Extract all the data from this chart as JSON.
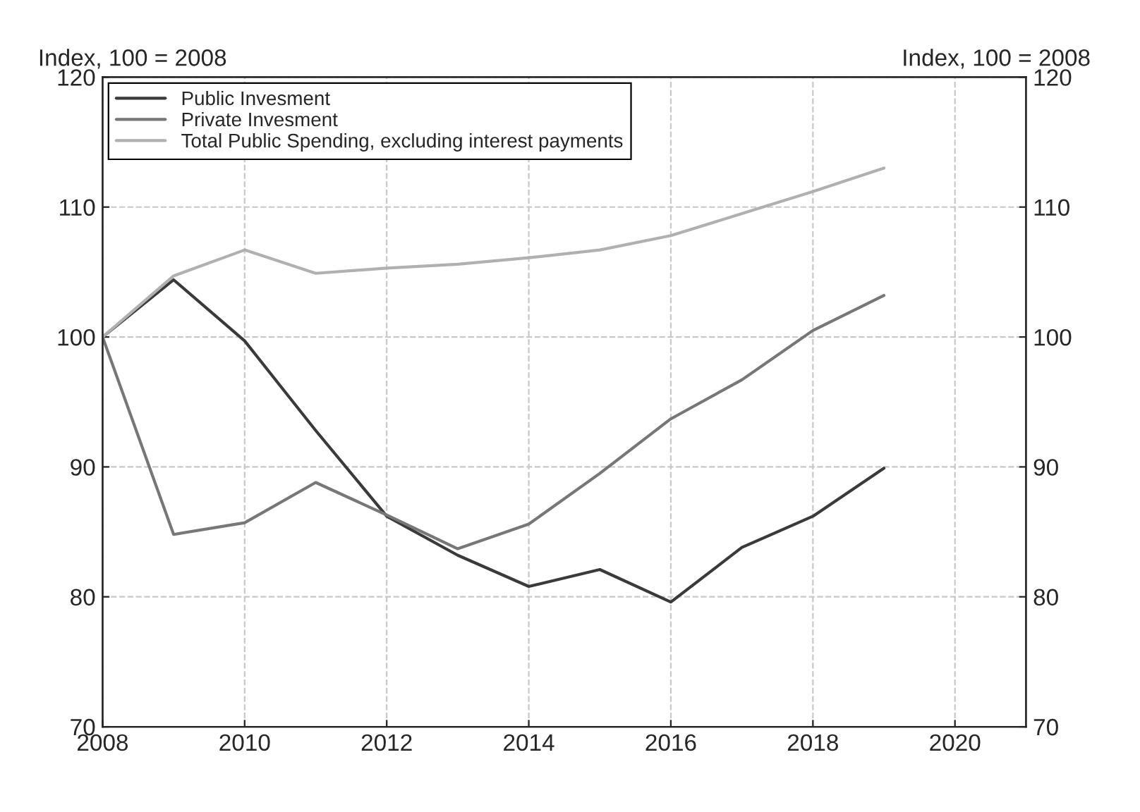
{
  "chart_data": {
    "type": "line",
    "ylabel": "Index, 100 = 2008",
    "y2label": "Index, 100 = 2008",
    "x": [
      2008,
      2009,
      2010,
      2011,
      2012,
      2013,
      2014,
      2015,
      2016,
      2017,
      2018,
      2019
    ],
    "series": [
      {
        "name": "Public Invesment",
        "color": "#3a3a3a",
        "values": [
          100,
          104.4,
          99.7,
          92.8,
          86.2,
          83.2,
          80.8,
          82.1,
          79.6,
          83.8,
          86.2,
          89.9
        ]
      },
      {
        "name": "Private Invesment",
        "color": "#777777",
        "values": [
          100,
          84.8,
          85.7,
          88.8,
          86.3,
          83.7,
          85.6,
          89.5,
          93.7,
          96.7,
          100.5,
          103.2
        ]
      },
      {
        "name": "Total Public Spending, excluding interest payments",
        "color": "#b0b0b0",
        "values": [
          100,
          104.7,
          106.7,
          104.9,
          105.3,
          105.6,
          106.1,
          106.7,
          107.8,
          109.5,
          111.2,
          113.0
        ]
      }
    ],
    "xlim": [
      2008,
      2021
    ],
    "xticks": [
      2008,
      2010,
      2012,
      2014,
      2016,
      2018,
      2020
    ],
    "ylim": [
      70,
      120
    ],
    "yticks": [
      70,
      80,
      90,
      100,
      110,
      120
    ],
    "y2lim": [
      70,
      120
    ],
    "y2ticks": [
      70,
      80,
      90,
      100,
      110,
      120
    ],
    "grid": true,
    "legend": "top left",
    "line_style": "solid"
  }
}
